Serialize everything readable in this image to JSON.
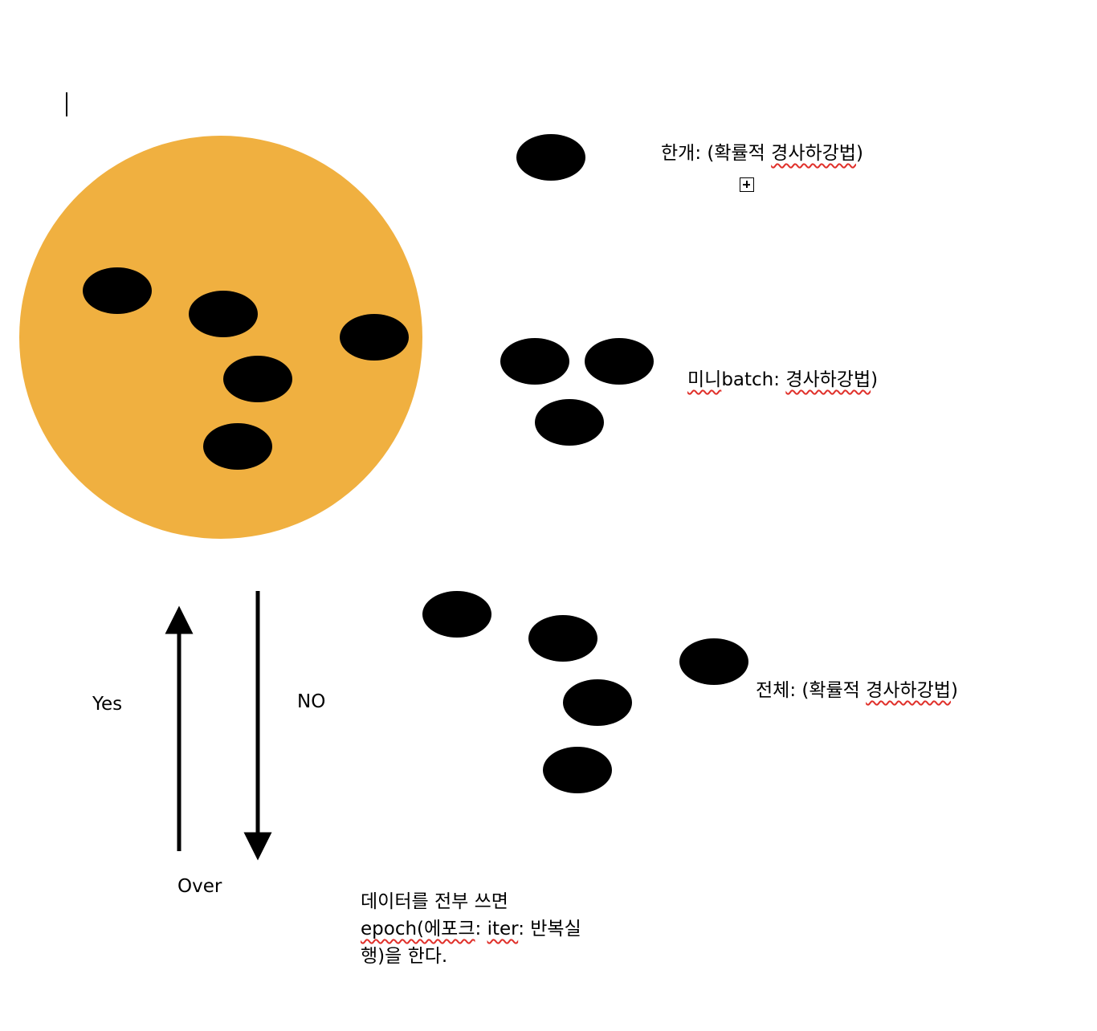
{
  "colors": {
    "dataset_circle": "#f0b040",
    "sample_blob": "#000000",
    "arrow": "#000000",
    "spellcheck_underline": "#e0302a"
  },
  "labels": {
    "single": {
      "before": "한개: (확률적 ",
      "underlined": "경사하강법",
      "after": ")"
    },
    "minibatch": {
      "underlined_1": "미니",
      "middle": "batch: ",
      "underlined_2": "경사하강법",
      "after": ")"
    },
    "full": {
      "before": "전체: (확률적 ",
      "underlined": "경사하강법",
      "after": ")"
    },
    "yes": "Yes",
    "no": "NO",
    "over": "Over",
    "note": {
      "line1": "데이터를 전부 쓰면",
      "line2_underlined_1": "epoch(에포크",
      "line2_mid": ": ",
      "line2_underlined_2": "iter",
      "line2_after": ": 반복실",
      "line3": "행)을 한다."
    }
  }
}
